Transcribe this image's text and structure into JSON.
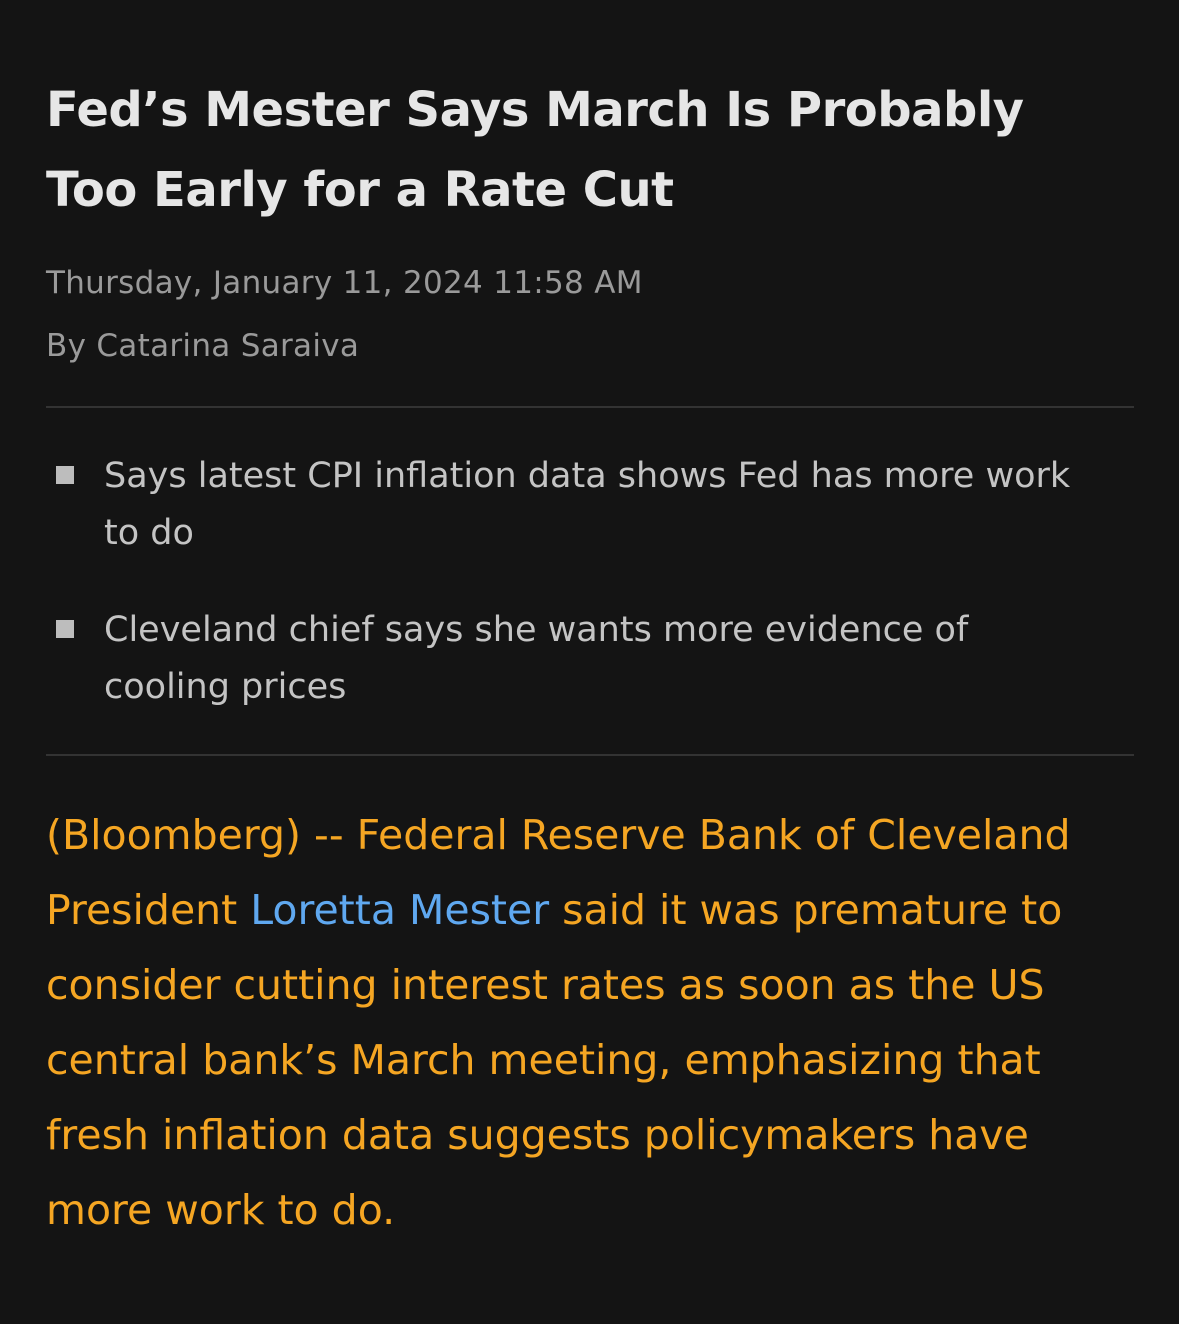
{
  "article": {
    "headline": "Fed’s Mester Says March Is Probably Too Early for a Rate Cut",
    "date": "Thursday, January 11, 2024 11:58 AM",
    "byline": "By Catarina Saraiva",
    "bullets": [
      "Says latest CPI inflation data shows Fed has more work to do",
      "Cleveland chief says she wants more evidence of cooling prices"
    ],
    "body": {
      "before_link": "(Bloomberg) -- Federal Reserve Bank of Cleveland President ",
      "link_text": "Loretta Mester",
      "after_link": " said it was premature to consider cutting interest rates as soon as the US central bank’s March meeting, emphasizing that fresh inflation data suggests policymakers have more work to do."
    }
  },
  "colors": {
    "background": "#141414",
    "headline": "#e6e6e6",
    "meta": "#9a9a9a",
    "bullet_text": "#c4c4c4",
    "body_text": "#f5a623",
    "link": "#5fa8f0",
    "divider": "#333333"
  },
  "icons": {
    "bullet_marker": "square-bullet-icon"
  }
}
